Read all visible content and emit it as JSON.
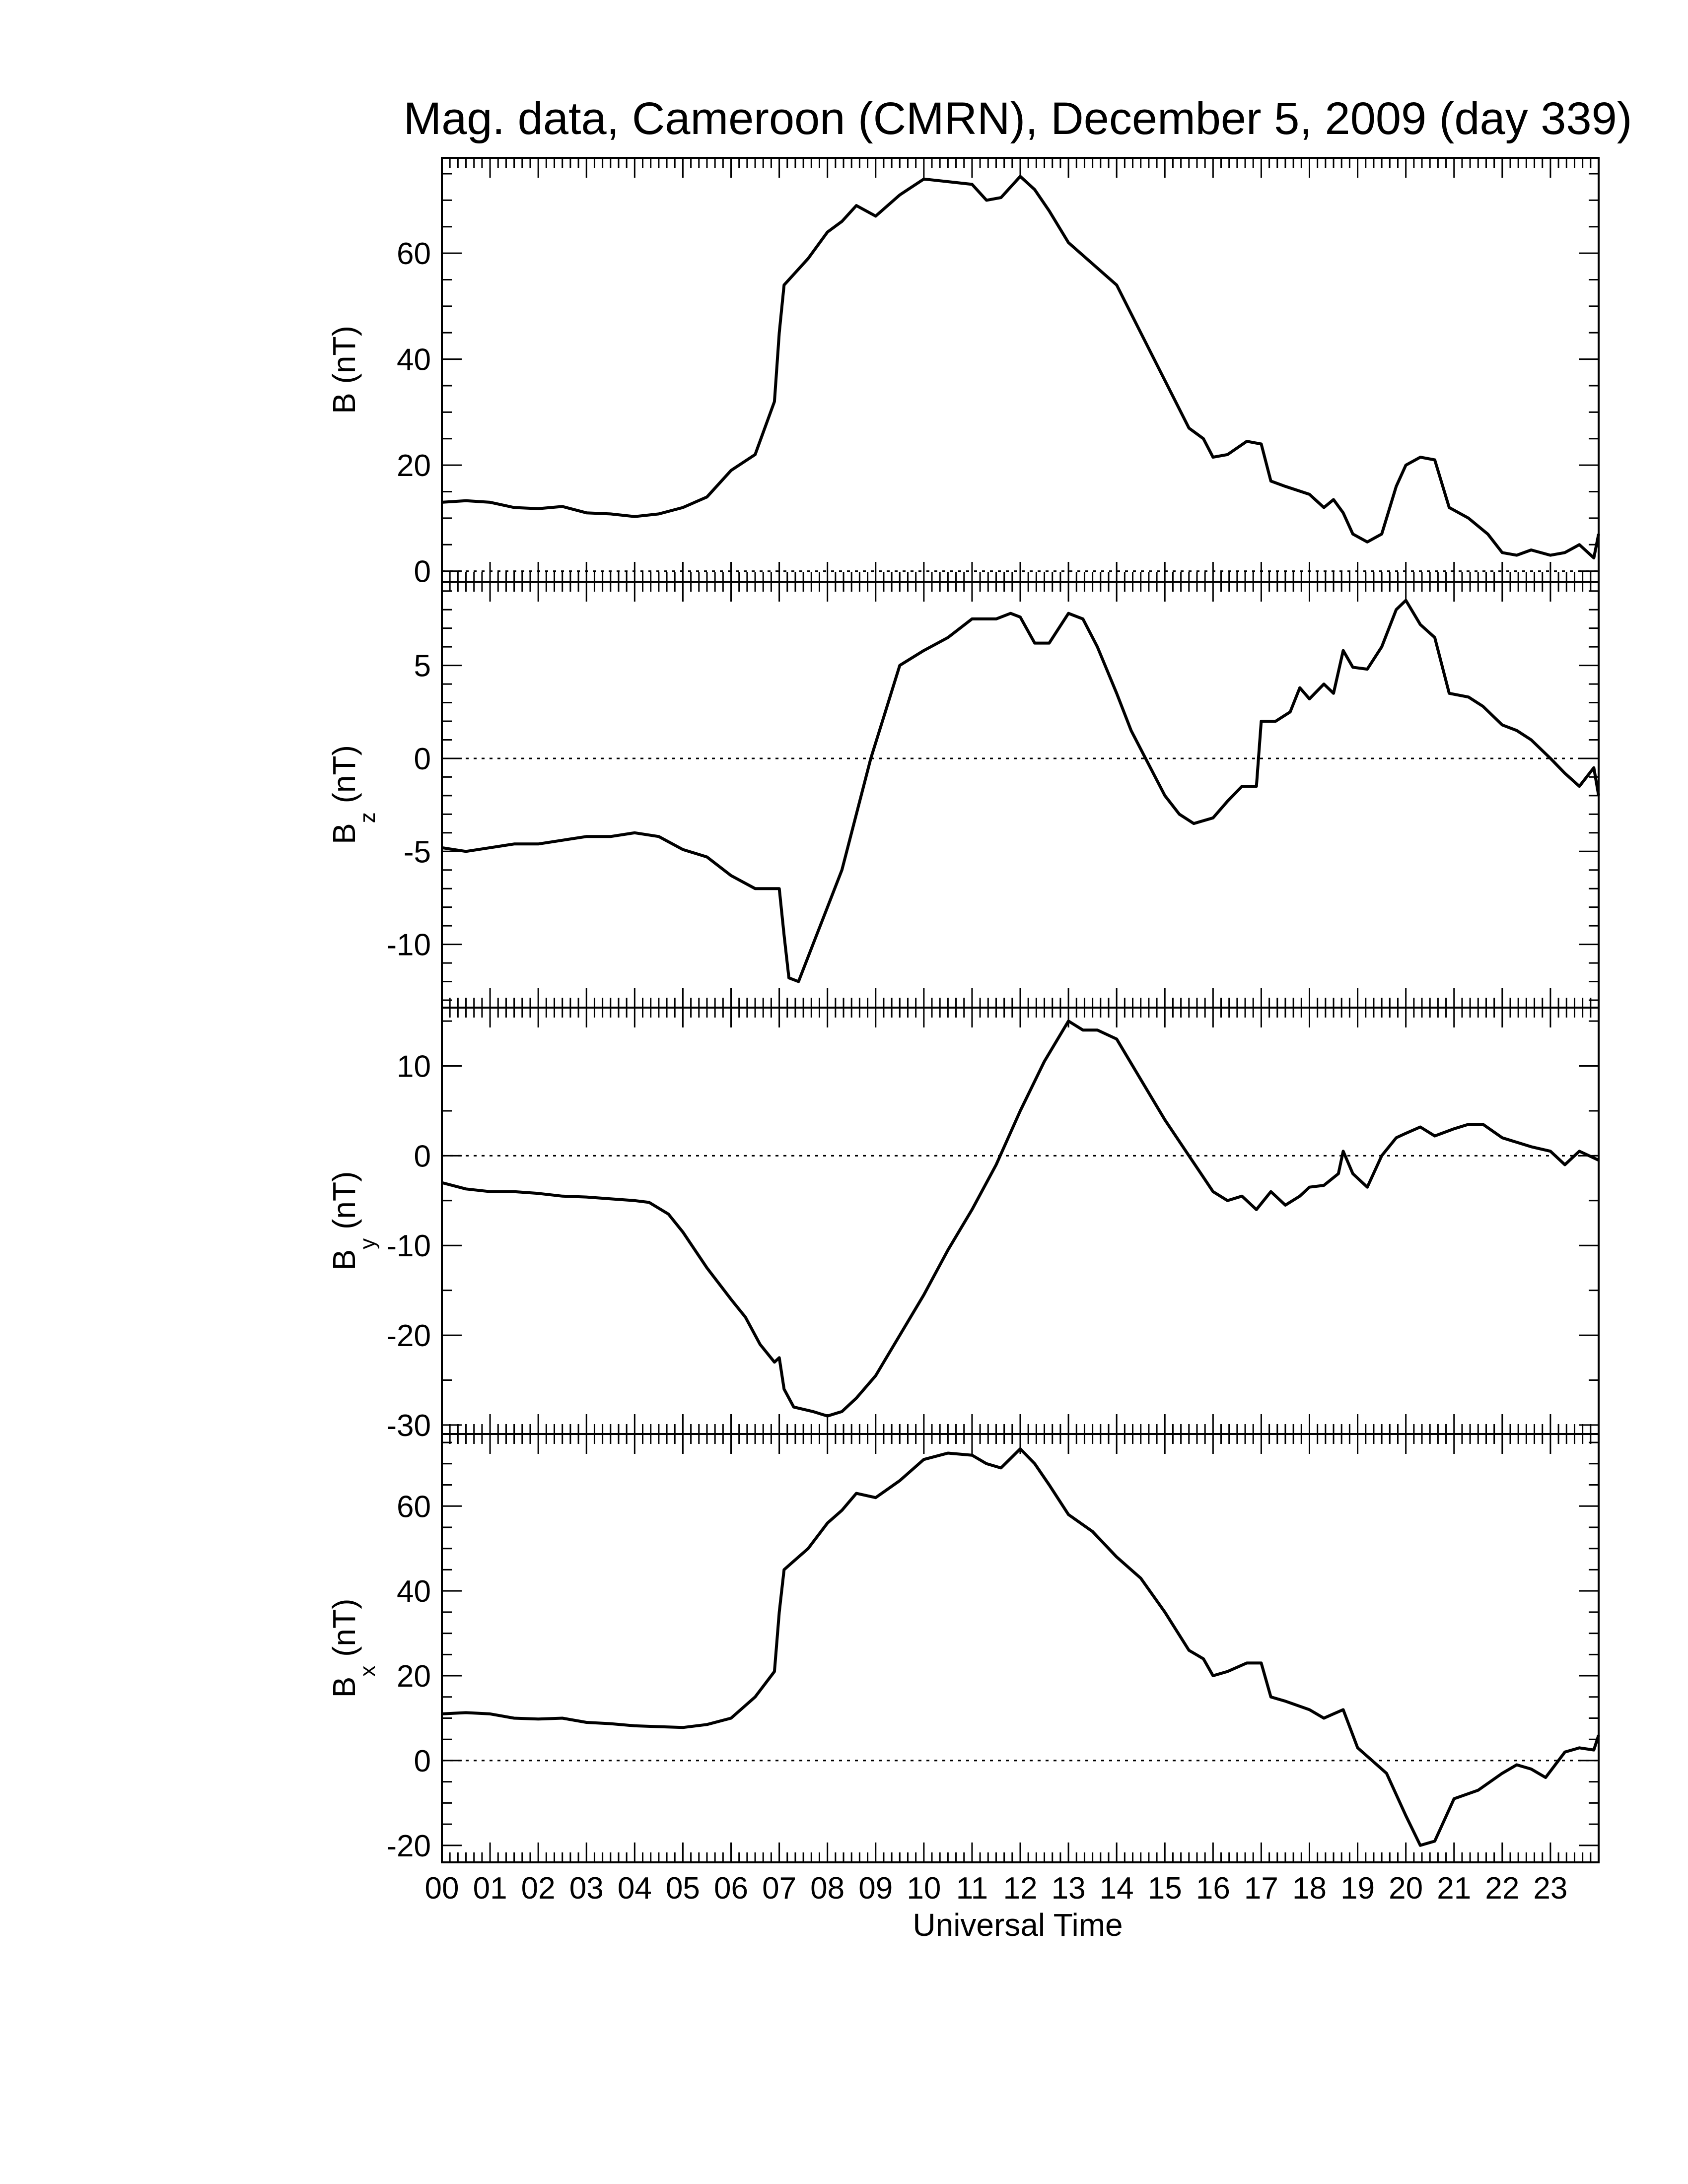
{
  "title": "Mag. data, Cameroon (CMRN), December 5, 2009 (day 339)",
  "colors": {
    "line": "#000000",
    "background": "#ffffff",
    "zero_line": "#000000"
  },
  "chart_data": [
    {
      "type": "line",
      "panel": "B",
      "ylabel_main": "B",
      "ylabel_sub": "",
      "ylabel_unit": " (nT)",
      "ylim": [
        -2,
        78
      ],
      "yticks": [
        0,
        20,
        40,
        60
      ],
      "zero_line": true,
      "series": [
        {
          "x": [
            0,
            0.5,
            1,
            1.5,
            2,
            2.5,
            3,
            3.5,
            4,
            4.5,
            5,
            5.5,
            6,
            6.5,
            6.9,
            7.0,
            7.1,
            7.3,
            7.6,
            8,
            8.3,
            8.6,
            9,
            9.5,
            10,
            10.5,
            11,
            11.3,
            11.6,
            12,
            12.3,
            12.6,
            13,
            13.5,
            14,
            14.5,
            15,
            15.5,
            15.8,
            16,
            16.3,
            16.7,
            17,
            17.2,
            17.5,
            18,
            18.3,
            18.5,
            18.7,
            18.9,
            19.2,
            19.5,
            19.8,
            20,
            20.3,
            20.6,
            20.9,
            21.3,
            21.7,
            22,
            22.3,
            22.6,
            23,
            23.3,
            23.6,
            23.9,
            24
          ],
          "y": [
            13,
            13.3,
            13,
            12,
            11.8,
            12.2,
            11,
            10.8,
            10.3,
            10.8,
            12,
            14,
            19,
            22,
            32,
            45,
            54,
            56,
            59,
            64,
            66,
            69,
            67,
            71,
            74,
            73.5,
            73,
            70,
            70.5,
            74.5,
            72,
            68,
            62,
            58,
            54,
            45,
            36,
            27,
            25,
            21.5,
            22,
            24.5,
            24,
            17,
            16,
            14.5,
            12,
            13.5,
            11,
            7,
            5.5,
            7,
            16,
            20,
            21.5,
            21,
            12,
            10,
            7,
            3.5,
            3,
            4,
            3,
            3.5,
            5,
            2.5,
            7
          ]
        }
      ]
    },
    {
      "type": "line",
      "panel": "Bz",
      "ylabel_main": "B",
      "ylabel_sub": "z",
      "ylabel_unit": " (nT)",
      "ylim": [
        -13.4,
        9.5
      ],
      "yticks": [
        -10,
        -5,
        0,
        5
      ],
      "zero_line": true,
      "series": [
        {
          "x": [
            0,
            0.5,
            1,
            1.5,
            2,
            2.5,
            3,
            3.5,
            4,
            4.5,
            5,
            5.5,
            6,
            6.5,
            6.9,
            7.0,
            7.1,
            7.2,
            7.4,
            7.7,
            8,
            8.3,
            8.6,
            8.9,
            9.2,
            9.5,
            10,
            10.5,
            11,
            11.5,
            11.8,
            12,
            12.3,
            12.6,
            13,
            13.3,
            13.6,
            14,
            14.3,
            14.6,
            15,
            15.3,
            15.6,
            16,
            16.3,
            16.6,
            16.9,
            17.0,
            17.3,
            17.6,
            17.8,
            18,
            18.3,
            18.5,
            18.7,
            18.9,
            19.2,
            19.5,
            19.8,
            20,
            20.3,
            20.6,
            20.9,
            21.3,
            21.6,
            22,
            22.3,
            22.6,
            23,
            23.3,
            23.6,
            23.9,
            24
          ],
          "y": [
            -4.8,
            -5,
            -4.8,
            -4.6,
            -4.6,
            -4.4,
            -4.2,
            -4.2,
            -4,
            -4.2,
            -4.9,
            -5.3,
            -6.3,
            -7,
            -7,
            -7,
            -9.5,
            -11.8,
            -12,
            -10,
            -8,
            -6,
            -3,
            0,
            2.5,
            5,
            5.8,
            6.5,
            7.5,
            7.5,
            7.8,
            7.6,
            6.2,
            6.2,
            7.8,
            7.5,
            6,
            3.5,
            1.5,
            0,
            -2,
            -3,
            -3.5,
            -3.2,
            -2.3,
            -1.5,
            -1.5,
            2,
            2,
            2.5,
            3.8,
            3.2,
            4,
            3.5,
            5.8,
            4.9,
            4.8,
            6,
            8,
            8.5,
            7.2,
            6.5,
            3.5,
            3.3,
            2.8,
            1.8,
            1.5,
            1,
            0,
            -0.8,
            -1.5,
            -0.5,
            -2
          ]
        }
      ]
    },
    {
      "type": "line",
      "panel": "By",
      "ylabel_main": "B",
      "ylabel_sub": "y",
      "ylabel_unit": " (nT)",
      "ylim": [
        -31,
        16.5
      ],
      "yticks": [
        -30,
        -20,
        -10,
        0,
        10
      ],
      "zero_line": true,
      "series": [
        {
          "x": [
            0,
            0.5,
            1,
            1.5,
            2,
            2.5,
            3,
            3.5,
            4,
            4.3,
            4.7,
            5,
            5.5,
            6,
            6.3,
            6.6,
            6.9,
            7.0,
            7.1,
            7.3,
            7.7,
            8,
            8.3,
            8.6,
            9,
            9.5,
            10,
            10.5,
            11,
            11.5,
            12,
            12.5,
            13,
            13.3,
            13.6,
            14,
            14.5,
            15,
            15.5,
            16,
            16.3,
            16.6,
            16.9,
            17.2,
            17.5,
            17.8,
            18,
            18.3,
            18.6,
            18.7,
            18.9,
            19.2,
            19.5,
            19.8,
            20,
            20.3,
            20.6,
            21,
            21.3,
            21.6,
            22,
            22.3,
            22.6,
            23,
            23.3,
            23.6,
            24
          ],
          "y": [
            -3,
            -3.7,
            -4,
            -4,
            -4.2,
            -4.5,
            -4.6,
            -4.8,
            -5,
            -5.2,
            -6.5,
            -8.5,
            -12.5,
            -16,
            -18,
            -21,
            -23,
            -22.5,
            -26,
            -28,
            -28.5,
            -29,
            -28.5,
            -27,
            -24.5,
            -20,
            -15.5,
            -10.5,
            -6,
            -1,
            5,
            10.5,
            15,
            14,
            14,
            13,
            8.5,
            4,
            0,
            -4,
            -5,
            -4.5,
            -6,
            -4,
            -5.5,
            -4.5,
            -3.5,
            -3.3,
            -2,
            0.5,
            -2,
            -3.5,
            0,
            2,
            2.5,
            3.2,
            2.2,
            3,
            3.5,
            3.5,
            2,
            1.5,
            1,
            0.5,
            -1,
            0.5,
            -0.5
          ]
        }
      ]
    },
    {
      "type": "line",
      "panel": "Bx",
      "ylabel_main": "B",
      "ylabel_sub": "x",
      "ylabel_unit": " (nT)",
      "ylim": [
        -24,
        77
      ],
      "yticks": [
        -20,
        0,
        20,
        40,
        60
      ],
      "zero_line": true,
      "series": [
        {
          "x": [
            0,
            0.5,
            1,
            1.5,
            2,
            2.5,
            3,
            3.5,
            4,
            4.5,
            5,
            5.5,
            6,
            6.5,
            6.9,
            7.0,
            7.1,
            7.3,
            7.6,
            8,
            8.3,
            8.6,
            9,
            9.5,
            10,
            10.5,
            11,
            11.3,
            11.6,
            12,
            12.3,
            12.6,
            13,
            13.5,
            14,
            14.5,
            15,
            15.5,
            15.8,
            16,
            16.3,
            16.7,
            17,
            17.2,
            17.5,
            18,
            18.3,
            18.5,
            18.7,
            19,
            19.3,
            19.6,
            20,
            20.3,
            20.6,
            21,
            21.5,
            22,
            22.3,
            22.6,
            22.9,
            23.3,
            23.6,
            23.9,
            24
          ],
          "y": [
            11,
            11.3,
            11,
            10,
            9.8,
            10,
            9,
            8.7,
            8.2,
            8,
            7.8,
            8.5,
            10,
            15,
            21,
            35,
            45,
            47,
            50,
            56,
            59,
            63,
            62,
            66,
            71,
            72.5,
            72,
            70,
            69,
            73.5,
            70,
            65,
            58,
            54,
            48,
            43,
            35,
            26,
            24,
            20,
            21,
            23,
            23,
            15,
            14,
            12,
            10,
            11,
            12,
            3,
            0,
            -3,
            -13,
            -20,
            -19,
            -9,
            -7,
            -3,
            -1,
            -2,
            -4,
            2,
            3,
            2.5,
            6
          ]
        }
      ]
    }
  ],
  "x_axis": {
    "xlim": [
      0,
      24
    ],
    "tick_labels": [
      "00",
      "01",
      "02",
      "03",
      "04",
      "05",
      "06",
      "07",
      "08",
      "09",
      "10",
      "11",
      "12",
      "13",
      "14",
      "15",
      "16",
      "17",
      "18",
      "19",
      "20",
      "21",
      "22",
      "23"
    ],
    "xlabel": "Universal Time"
  }
}
